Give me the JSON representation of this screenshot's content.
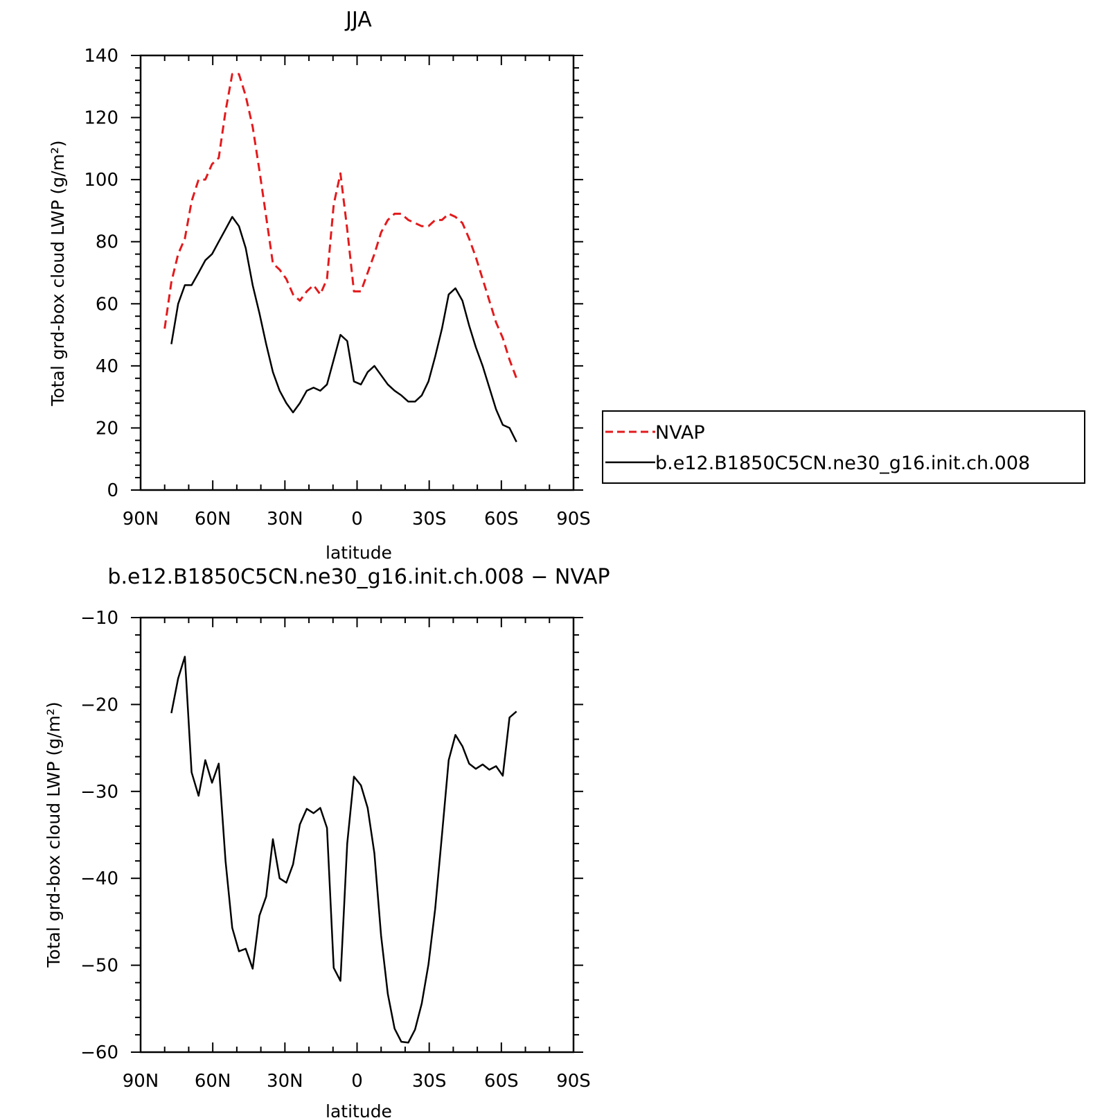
{
  "chart_data": [
    {
      "type": "line",
      "title": "JJA",
      "xlabel": "latitude",
      "ylabel": "Total grd-box cloud LWP (g/m²)",
      "x_ticks": [
        "90N",
        "60N",
        "30N",
        "0",
        "30S",
        "60S",
        "90S"
      ],
      "x_tick_values": [
        90,
        60,
        30,
        0,
        -30,
        -60,
        -90
      ],
      "xlim": [
        90,
        -90
      ],
      "ylim": [
        0,
        140
      ],
      "y_ticks": [
        0,
        20,
        40,
        60,
        80,
        100,
        120,
        140
      ],
      "grid": false,
      "legend": {
        "placement": "right, outside plot"
      },
      "series": [
        {
          "name": "NVAP",
          "color": "#e31a1c",
          "dash": "dashed",
          "x": [
            80,
            77.2,
            74.4,
            71.6,
            68.8,
            65.9,
            63.1,
            60.3,
            57.5,
            54.7,
            51.9,
            49.1,
            46.3,
            43.4,
            40.6,
            37.8,
            35,
            32.2,
            29.4,
            26.6,
            23.8,
            20.9,
            18.1,
            15.3,
            12.5,
            9.7,
            6.9,
            4.1,
            1.3,
            -1.6,
            -4.4,
            -7.2,
            -10,
            -12.8,
            -15.6,
            -18.4,
            -21.3,
            -24.1,
            -26.9,
            -29.7,
            -32.5,
            -35.3,
            -38.1,
            -40.9,
            -43.8,
            -46.6,
            -49.4,
            -52.2,
            -55,
            -57.8,
            -60.6,
            -63.4,
            -66.3
          ],
          "values": [
            52,
            67,
            76,
            81,
            93,
            100,
            100,
            105,
            107,
            122,
            134,
            134,
            127,
            117,
            103,
            88,
            73,
            71,
            68,
            63,
            61,
            64,
            66,
            63,
            68,
            92,
            102,
            84,
            64,
            64,
            70,
            76,
            83,
            87,
            89,
            89,
            87,
            86,
            85,
            85,
            87,
            87,
            89,
            88,
            86,
            81,
            75,
            68,
            61,
            54,
            49,
            42,
            36
          ]
        },
        {
          "name": "b.e12.B1850C5CN.ne30_g16.init.ch.008",
          "color": "#000000",
          "dash": "solid",
          "x": [
            77.2,
            74.4,
            71.6,
            68.8,
            65.9,
            63.1,
            60.3,
            57.5,
            54.7,
            51.9,
            49.1,
            46.3,
            43.4,
            40.6,
            37.8,
            35,
            32.2,
            29.4,
            26.6,
            23.8,
            20.9,
            18.1,
            15.3,
            12.5,
            9.7,
            6.9,
            4.1,
            1.3,
            -1.6,
            -4.4,
            -7.2,
            -10,
            -12.8,
            -15.6,
            -18.4,
            -21.3,
            -24.1,
            -26.9,
            -29.7,
            -32.5,
            -35.3,
            -38.1,
            -40.9,
            -43.8,
            -46.6,
            -49.4,
            -52.2,
            -55,
            -57.8,
            -60.6,
            -63.4,
            -66.3
          ],
          "values": [
            47,
            60,
            66,
            66,
            70,
            74,
            76,
            80,
            84,
            88,
            85,
            78,
            66,
            57,
            47,
            38,
            32,
            28,
            25,
            28,
            32,
            33,
            32,
            34,
            42,
            50,
            48,
            35,
            34,
            38,
            40,
            37,
            34,
            32,
            30.5,
            28.5,
            28.5,
            30.5,
            35,
            43,
            52,
            63,
            65,
            61,
            53,
            46,
            40,
            33,
            26,
            21,
            20,
            15.5
          ]
        }
      ]
    },
    {
      "type": "line",
      "title": "b.e12.B1850C5CN.ne30_g16.init.ch.008 − NVAP",
      "xlabel": "latitude",
      "ylabel": "Total grd-box cloud LWP (g/m²)",
      "x_ticks": [
        "90N",
        "60N",
        "30N",
        "0",
        "30S",
        "60S",
        "90S"
      ],
      "x_tick_values": [
        90,
        60,
        30,
        0,
        -30,
        -60,
        -90
      ],
      "xlim": [
        90,
        -90
      ],
      "ylim": [
        -60,
        -10
      ],
      "y_ticks": [
        -60,
        -50,
        -40,
        -30,
        -20,
        -10
      ],
      "grid": false,
      "series": [
        {
          "color": "#000000",
          "dash": "solid",
          "x": [
            77.2,
            74.4,
            71.6,
            68.8,
            65.9,
            63.1,
            60.3,
            57.5,
            54.7,
            51.9,
            49.1,
            46.3,
            43.4,
            40.6,
            37.8,
            35,
            32.2,
            29.4,
            26.6,
            23.8,
            20.9,
            18.1,
            15.3,
            12.5,
            9.7,
            6.9,
            4.1,
            1.3,
            -1.6,
            -4.4,
            -7.2,
            -10,
            -12.8,
            -15.6,
            -18.4,
            -21.3,
            -24.1,
            -26.9,
            -29.7,
            -32.5,
            -35.3,
            -38.1,
            -40.9,
            -43.8,
            -46.6,
            -49.4,
            -52.2,
            -55,
            -57.8,
            -60.6,
            -63.4,
            -66.3
          ],
          "values": [
            -21,
            -17,
            -14.5,
            -27.8,
            -30.5,
            -26.4,
            -29,
            -26.8,
            -38,
            -45.7,
            -48.4,
            -48.1,
            -50.4,
            -44.3,
            -42.1,
            -35.5,
            -40,
            -40.5,
            -38.4,
            -33.8,
            -32,
            -32.5,
            -31.9,
            -34.2,
            -50.3,
            -51.8,
            -36,
            -28.3,
            -29.3,
            -31.9,
            -37.1,
            -46.6,
            -53.3,
            -57.3,
            -58.8,
            -58.9,
            -57.4,
            -54.4,
            -49.9,
            -43.5,
            -35,
            -26.4,
            -23.5,
            -24.8,
            -26.8,
            -27.4,
            -26.9,
            -27.5,
            -27.1,
            -28.2,
            -21.5,
            -20.8
          ]
        }
      ]
    }
  ]
}
